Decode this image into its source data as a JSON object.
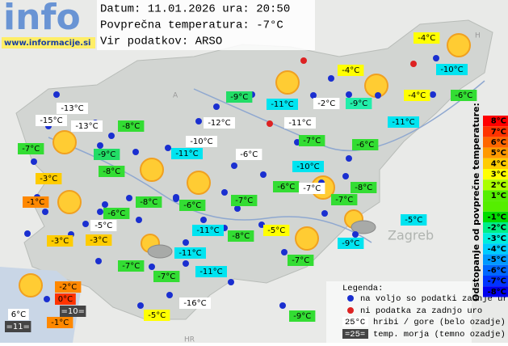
{
  "header": {
    "logo": "info",
    "url": "www.informacije.si",
    "date_line": "Datum: 11.01.2026 ura: 20:50",
    "avg_line": "Povprečna temperatura: -7°C",
    "source_line": "Vir podatkov: ARSO"
  },
  "map_labels": [
    "Zagreb",
    "HR",
    "H",
    "A"
  ],
  "stations": [
    {
      "label": "-4°C",
      "color": "#ffff00"
    },
    {
      "label": "-4°C",
      "color": "#ffff00"
    },
    {
      "label": "-10°C",
      "color": "#00e4f0"
    },
    {
      "label": "-9°C",
      "color": "#22dd66"
    },
    {
      "label": "-11°C",
      "color": "#00e4f0"
    },
    {
      "label": "-2°C",
      "color": "#ffffff"
    },
    {
      "label": "-9°C",
      "color": "#22eeaa"
    },
    {
      "label": "-4°C",
      "color": "#ffff00"
    },
    {
      "label": "-6°C",
      "color": "#33dd33"
    },
    {
      "label": "-13°C",
      "color": "#ffffff"
    },
    {
      "label": "-15°C",
      "color": "#ffffff"
    },
    {
      "label": "-13°C",
      "color": "#ffffff"
    },
    {
      "label": "-8°C",
      "color": "#33dd33"
    },
    {
      "label": "-12°C",
      "color": "#ffffff"
    },
    {
      "label": "-11°C",
      "color": "#ffffff"
    },
    {
      "label": "-11°C",
      "color": "#00e4f0"
    },
    {
      "label": "-7°C",
      "color": "#33dd33"
    },
    {
      "label": "-9°C",
      "color": "#22dd66"
    },
    {
      "label": "-10°C",
      "color": "#ffffff"
    },
    {
      "label": "-11°C",
      "color": "#00e4f0"
    },
    {
      "label": "-6°C",
      "color": "#ffffff"
    },
    {
      "label": "-7°C",
      "color": "#33dd33"
    },
    {
      "label": "-6°C",
      "color": "#33dd33"
    },
    {
      "label": "-8°C",
      "color": "#33dd33"
    },
    {
      "label": "-10°C",
      "color": "#00e4f0"
    },
    {
      "label": "-3°C",
      "color": "#ffcc00"
    },
    {
      "label": "-6°C",
      "color": "#33dd33"
    },
    {
      "label": "-7°C",
      "color": "#ffffff"
    },
    {
      "label": "-8°C",
      "color": "#33dd33"
    },
    {
      "label": "-1°C",
      "color": "#ff8800"
    },
    {
      "label": "-8°C",
      "color": "#33dd33"
    },
    {
      "label": "-6°C",
      "color": "#33dd33"
    },
    {
      "label": "-7°C",
      "color": "#33dd33"
    },
    {
      "label": "-7°C",
      "color": "#33dd33"
    },
    {
      "label": "-6°C",
      "color": "#33dd33"
    },
    {
      "label": "-5°C",
      "color": "#ffffff"
    },
    {
      "label": "-11°C",
      "color": "#00e4f0"
    },
    {
      "label": "-5°C",
      "color": "#ffff00"
    },
    {
      "label": "-5°C",
      "color": "#00e4f0"
    },
    {
      "label": "-8°C",
      "color": "#33dd33"
    },
    {
      "label": "-3°C",
      "color": "#ffcc00"
    },
    {
      "label": "-3°C",
      "color": "#ffcc00"
    },
    {
      "label": "-9°C",
      "color": "#00e4f0"
    },
    {
      "label": "-11°C",
      "color": "#00e4f0"
    },
    {
      "label": "-7°C",
      "color": "#33dd33"
    },
    {
      "label": "-7°C",
      "color": "#33dd33"
    },
    {
      "label": "-7°C",
      "color": "#33dd33"
    },
    {
      "label": "-11°C",
      "color": "#00e4f0"
    },
    {
      "label": "-2°C",
      "color": "#ff8800"
    },
    {
      "label": "0°C",
      "color": "#ff3300"
    },
    {
      "label": "=10=",
      "color": "#444444"
    },
    {
      "label": "6°C",
      "color": "#ffffff"
    },
    {
      "label": "-1°C",
      "color": "#ff8800"
    },
    {
      "label": "=11=",
      "color": "#444444"
    },
    {
      "label": "-16°C",
      "color": "#ffffff"
    },
    {
      "label": "-5°C",
      "color": "#ffff00"
    },
    {
      "label": "-9°C",
      "color": "#33dd33"
    }
  ],
  "scale": {
    "title": "Odstopanje od povprečne temperature:",
    "items": [
      {
        "label": "8°C",
        "color": "#ff0000"
      },
      {
        "label": "7°C",
        "color": "#ff3300"
      },
      {
        "label": "6°C",
        "color": "#ff6600"
      },
      {
        "label": "5°C",
        "color": "#ff9900"
      },
      {
        "label": "4°C",
        "color": "#ffcc00"
      },
      {
        "label": "3°C",
        "color": "#ffff00"
      },
      {
        "label": "2°C",
        "color": "#aaff00"
      },
      {
        "label": "1°C",
        "color": "#55ee00"
      },
      {
        "label": "-1°C",
        "color": "#00dd00"
      },
      {
        "label": "-2°C",
        "color": "#00ee88"
      },
      {
        "label": "-3°C",
        "color": "#00eedd"
      },
      {
        "label": "-4°C",
        "color": "#00ccff"
      },
      {
        "label": "-5°C",
        "color": "#0099ff"
      },
      {
        "label": "-6°C",
        "color": "#0066ff"
      },
      {
        "label": "-7°C",
        "color": "#0033ff"
      },
      {
        "label": "-8°C",
        "color": "#0000ee"
      }
    ]
  },
  "legend": {
    "title": "Legenda:",
    "available": "na voljo so podatki zadnje ure",
    "missing": "ni podatka za zadnjo uro",
    "mountain_sample": "25°C",
    "mountain": "hribi / gore (belo ozadje)",
    "sea_sample": "=25=",
    "sea": "temp. morja (temno ozadje)"
  }
}
